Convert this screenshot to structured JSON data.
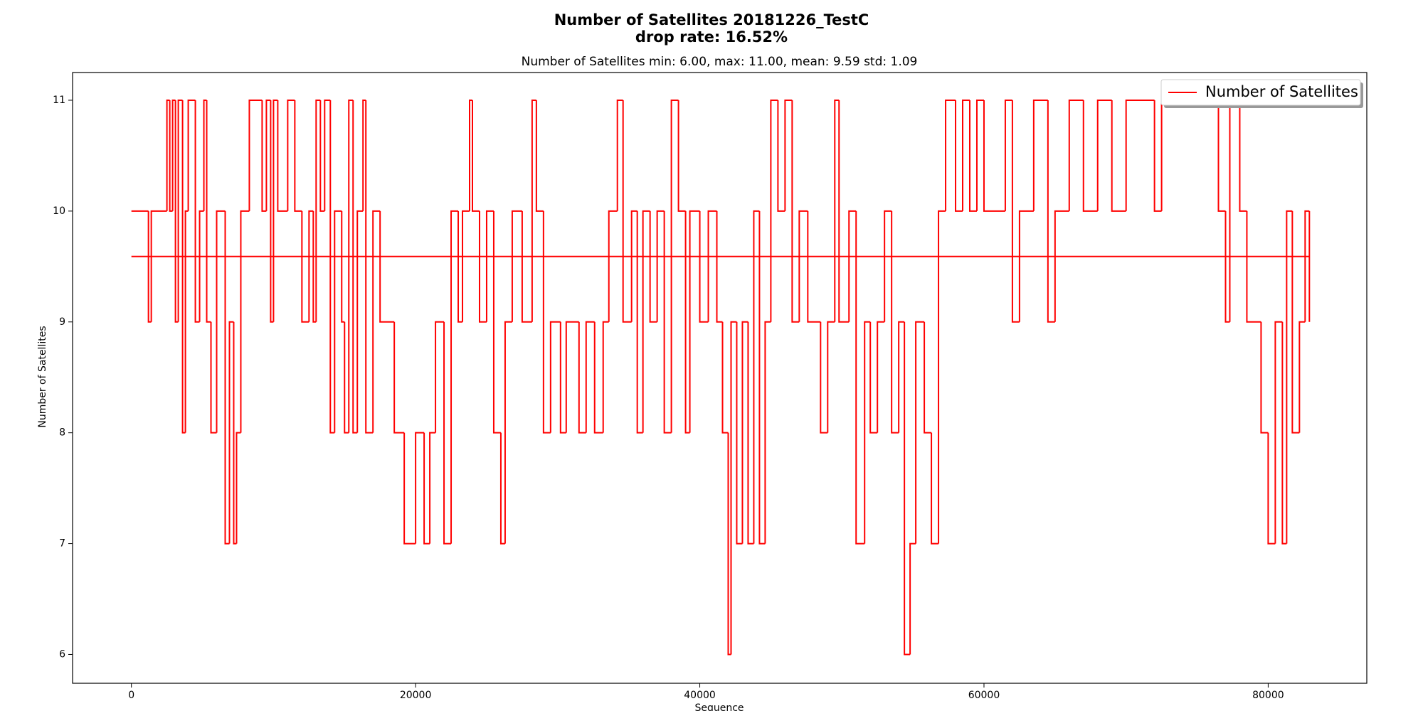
{
  "chart_data": {
    "type": "line",
    "title": "Number of Satellites 20181226_TestC",
    "title_line2": "drop rate: 16.52%",
    "subtitle": "Number of Satellites min: 6.00, max: 11.00, mean: 9.59 std: 1.09",
    "x_label": "Sequence",
    "y_label": "Number of Satellites",
    "xlim": [
      -4140,
      86940
    ],
    "ylim": [
      5.74,
      11.25
    ],
    "xticks": [
      0,
      20000,
      40000,
      60000,
      80000
    ],
    "yticks": [
      6,
      7,
      8,
      9,
      10,
      11
    ],
    "grid": false,
    "legend": "upper right",
    "drawstyle": "steps",
    "x": [
      0,
      1200,
      1400,
      2500,
      2700,
      2900,
      3100,
      3300,
      3600,
      3800,
      4000,
      4500,
      4800,
      5100,
      5300,
      5600,
      6000,
      6600,
      6900,
      7200,
      7400,
      7700,
      8300,
      9200,
      9500,
      9800,
      10000,
      10300,
      11000,
      11500,
      12000,
      12500,
      12800,
      13000,
      13300,
      13600,
      14000,
      14300,
      14800,
      15000,
      15300,
      15600,
      15900,
      16300,
      16500,
      17000,
      17500,
      18500,
      19200,
      20000,
      20600,
      21000,
      21400,
      22000,
      22500,
      23000,
      23300,
      23800,
      24000,
      24500,
      25000,
      25500,
      26000,
      26300,
      26800,
      27500,
      28200,
      28500,
      29000,
      29500,
      30200,
      30600,
      31500,
      32000,
      32600,
      33200,
      33600,
      34200,
      34600,
      35200,
      35600,
      36000,
      36500,
      37000,
      37500,
      38000,
      38500,
      39000,
      39300,
      40000,
      40600,
      41200,
      41600,
      42000,
      42200,
      42600,
      43000,
      43400,
      43800,
      44200,
      44600,
      45000,
      45500,
      46000,
      46500,
      47000,
      47600,
      48500,
      49000,
      49500,
      49800,
      50500,
      51000,
      51600,
      52000,
      52500,
      53000,
      53500,
      54000,
      54400,
      54800,
      55200,
      55800,
      56300,
      56800,
      57300,
      58000,
      58500,
      59000,
      59500,
      60000,
      61500,
      62000,
      62500,
      63500,
      64500,
      65000,
      66000,
      67000,
      68000,
      69000,
      70000,
      72000,
      72500,
      76500,
      77000,
      77300,
      78000,
      78500,
      79500,
      80000,
      80500,
      81000,
      81300,
      81700,
      82200,
      82600,
      82900
    ],
    "series": [
      {
        "name": "Number of Satellites",
        "color": "#ff0000",
        "values": [
          10,
          9,
          10,
          11,
          10,
          11,
          9,
          11,
          8,
          10,
          11,
          9,
          10,
          11,
          9,
          8,
          10,
          7,
          9,
          7,
          8,
          10,
          11,
          10,
          11,
          9,
          11,
          10,
          11,
          10,
          9,
          10,
          9,
          11,
          10,
          11,
          8,
          10,
          9,
          8,
          11,
          8,
          10,
          11,
          8,
          10,
          9,
          8,
          7,
          8,
          7,
          8,
          9,
          7,
          10,
          9,
          10,
          11,
          10,
          9,
          10,
          8,
          7,
          9,
          10,
          9,
          11,
          10,
          8,
          9,
          8,
          9,
          8,
          9,
          8,
          9,
          10,
          11,
          9,
          10,
          8,
          10,
          9,
          10,
          8,
          11,
          10,
          8,
          10,
          9,
          10,
          9,
          8,
          6,
          9,
          7,
          9,
          7,
          10,
          7,
          9,
          11,
          10,
          11,
          9,
          10,
          9,
          8,
          9,
          11,
          9,
          10,
          7,
          9,
          8,
          9,
          10,
          8,
          9,
          6,
          7,
          9,
          8,
          7,
          10,
          11,
          10,
          11,
          10,
          11,
          10,
          11,
          9,
          10,
          11,
          9,
          10,
          11,
          10,
          11,
          10,
          11,
          10,
          11,
          10,
          9,
          11,
          10,
          9,
          8,
          7,
          9,
          7,
          10,
          8,
          9,
          10,
          9
        ]
      }
    ],
    "mean_line": {
      "x": [
        0,
        82900
      ],
      "value": 9.59,
      "color": "#ff0000"
    }
  }
}
